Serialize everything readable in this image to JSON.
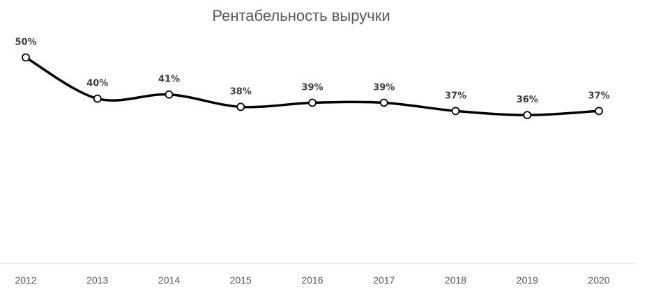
{
  "chart_data": {
    "type": "line",
    "title": "Рентабельность выручки",
    "xlabel": "",
    "ylabel": "",
    "categories": [
      "2012",
      "2013",
      "2014",
      "2015",
      "2016",
      "2017",
      "2018",
      "2019",
      "2020"
    ],
    "series": [
      {
        "values": [
          50,
          40,
          41,
          38,
          39,
          39,
          37,
          36,
          37
        ],
        "data_labels": [
          "50%",
          "40%",
          "41%",
          "38%",
          "39%",
          "39%",
          "37%",
          "36%",
          "37%"
        ]
      }
    ],
    "ylim": [
      0,
      56
    ],
    "grid": false,
    "legend": "none",
    "smoothed": true,
    "colors": {
      "line": "#000000",
      "marker_fill": "#ffffff",
      "axis": "#d9d9d9",
      "title": "#595959",
      "labels": "#404040",
      "ticks": "#595959"
    }
  }
}
